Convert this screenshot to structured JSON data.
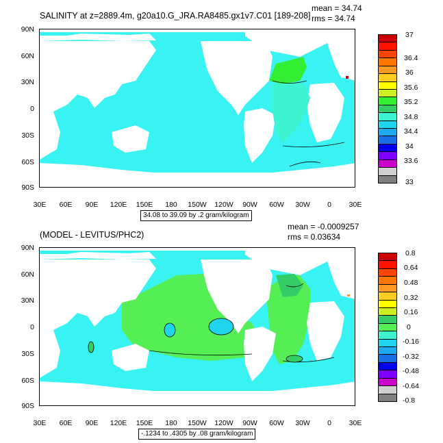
{
  "colors": {
    "ocean_fill": "#39f2f2",
    "land_fill": "#ffffff",
    "salinity_palette": [
      "#7f7f7f",
      "#d0d0d0",
      "#cc00cc",
      "#8000ff",
      "#0000ee",
      "#1a6fe6",
      "#1fa9f0",
      "#20d4ee",
      "#3ff5d1",
      "#33cc66",
      "#33ee33",
      "#ccee22",
      "#ffff00",
      "#ffcc22",
      "#ff9922",
      "#ff7700",
      "#ff4400",
      "#ff1100",
      "#cc0000"
    ],
    "diff_palette": [
      "#7f7f7f",
      "#d0d0d0",
      "#cc00cc",
      "#8000ff",
      "#0000ee",
      "#1a6fe6",
      "#1fa9f0",
      "#20d4ee",
      "#3ff5d1",
      "#55ee55",
      "#33cc66",
      "#ccee22",
      "#ffff00",
      "#ffcc22",
      "#ff9922",
      "#ff7700",
      "#ff4400",
      "#ff1100",
      "#cc0000"
    ]
  },
  "panel1": {
    "title": "SALINITY at z=2889.4m, g20a10.G_JRA.RA8485.gx1v7.C01 [189-208]",
    "mean": "mean = 34.74",
    "rms": "rms = 34.74",
    "range_note": "34.08 to 39.09 by .2 gram/kilogram",
    "colorbar_labels": [
      "37",
      "36.4",
      "36",
      "35.6",
      "35.2",
      "34.8",
      "34.4",
      "34",
      "33.6",
      "33"
    ]
  },
  "panel2": {
    "title": "(MODEL - LEVITUS/PHC2)",
    "mean": "mean = -0.0009257",
    "rms": "rms = 0.03634",
    "range_note": "-.1234 to .4305 by .08 gram/kilogram",
    "colorbar_labels": [
      "0.8",
      "0.64",
      "0.48",
      "0.32",
      "0.16",
      "0",
      "-0.16",
      "-0.32",
      "-0.48",
      "-0.64",
      "-0.8"
    ]
  },
  "axes": {
    "lat_labels": [
      "90N",
      "60N",
      "30N",
      "0",
      "30S",
      "60S",
      "90S"
    ],
    "lon_labels": [
      "30E",
      "60E",
      "90E",
      "120E",
      "150E",
      "180",
      "150W",
      "120W",
      "90W",
      "60W",
      "30W",
      "0",
      "30E"
    ]
  }
}
